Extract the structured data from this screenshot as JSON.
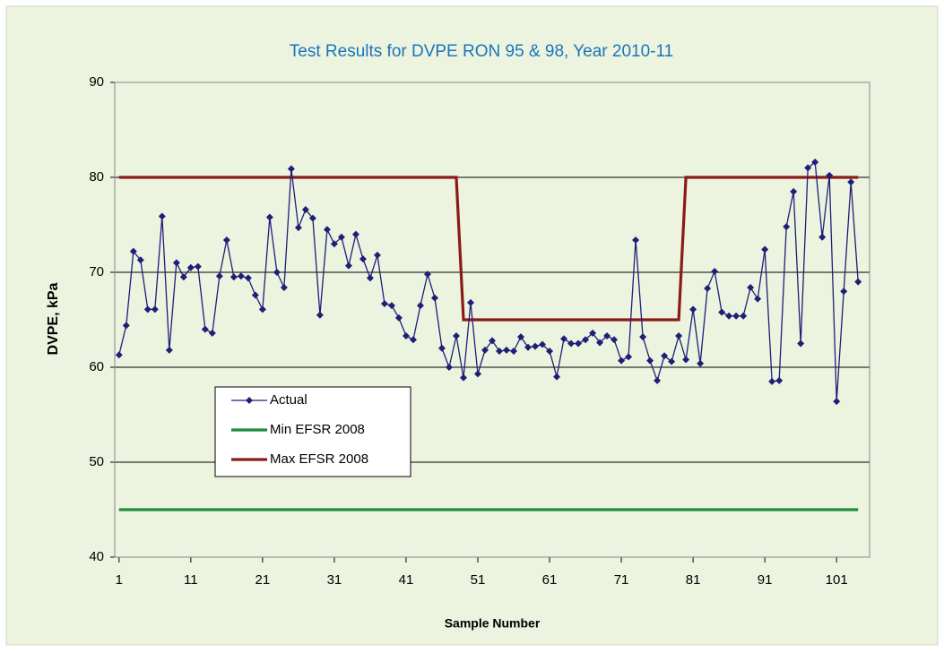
{
  "chart_data": {
    "type": "line",
    "title": "Test Results for DVPE RON 95 & 98, Year 2010-11",
    "x_label": "Sample Number",
    "y_label": "DVPE, kPa",
    "x": [
      1,
      2,
      3,
      4,
      5,
      6,
      7,
      8,
      9,
      10,
      11,
      12,
      13,
      14,
      15,
      16,
      17,
      18,
      19,
      20,
      21,
      22,
      23,
      24,
      25,
      26,
      27,
      28,
      29,
      30,
      31,
      32,
      33,
      34,
      35,
      36,
      37,
      38,
      39,
      40,
      41,
      42,
      43,
      44,
      45,
      46,
      47,
      48,
      49,
      50,
      51,
      52,
      53,
      54,
      55,
      56,
      57,
      58,
      59,
      60,
      61,
      62,
      63,
      64,
      65,
      66,
      67,
      68,
      69,
      70,
      71,
      72,
      73,
      74,
      75,
      76,
      77,
      78,
      79,
      80,
      81,
      82,
      83,
      84,
      85,
      86,
      87,
      88,
      89,
      90,
      91,
      92,
      93,
      94,
      95,
      96,
      97,
      98,
      99,
      100,
      101,
      102,
      103,
      104
    ],
    "series": [
      {
        "name": "Actual",
        "color": "#1f1f78",
        "marker": "diamond",
        "values": [
          61.3,
          64.4,
          72.2,
          71.3,
          66.1,
          66.1,
          75.9,
          61.8,
          71.0,
          69.5,
          70.5,
          70.6,
          64.0,
          63.6,
          69.6,
          73.4,
          69.5,
          69.6,
          69.4,
          67.6,
          66.1,
          75.8,
          70.0,
          68.4,
          80.9,
          74.7,
          76.6,
          75.7,
          65.5,
          74.5,
          73.0,
          73.7,
          70.7,
          74.0,
          71.4,
          69.4,
          71.8,
          66.7,
          66.5,
          65.2,
          63.3,
          62.9,
          66.5,
          69.8,
          67.3,
          62.0,
          60.0,
          63.3,
          58.9,
          66.8,
          59.3,
          61.8,
          62.8,
          61.7,
          61.8,
          61.7,
          63.2,
          62.1,
          62.2,
          62.4,
          61.7,
          59.0,
          63.0,
          62.5,
          62.5,
          62.9,
          63.6,
          62.6,
          63.3,
          62.9,
          60.7,
          61.1,
          73.4,
          63.2,
          60.7,
          58.6,
          61.2,
          60.6,
          63.3,
          60.8,
          66.1,
          60.4,
          68.3,
          70.1,
          65.8,
          65.4,
          65.4,
          65.4,
          68.4,
          67.2,
          72.4,
          58.5,
          58.6,
          74.8,
          78.5,
          62.5,
          81.0,
          81.6,
          73.7,
          80.2,
          56.4,
          68.0,
          79.5,
          69.0
        ]
      },
      {
        "name": "Min EFSR 2008",
        "color": "#1e8c3c",
        "values": [
          45,
          45,
          45,
          45,
          45,
          45,
          45,
          45,
          45,
          45,
          45,
          45,
          45,
          45,
          45,
          45,
          45,
          45,
          45,
          45,
          45,
          45,
          45,
          45,
          45,
          45,
          45,
          45,
          45,
          45,
          45,
          45,
          45,
          45,
          45,
          45,
          45,
          45,
          45,
          45,
          45,
          45,
          45,
          45,
          45,
          45,
          45,
          45,
          45,
          45,
          45,
          45,
          45,
          45,
          45,
          45,
          45,
          45,
          45,
          45,
          45,
          45,
          45,
          45,
          45,
          45,
          45,
          45,
          45,
          45,
          45,
          45,
          45,
          45,
          45,
          45,
          45,
          45,
          45,
          45,
          45,
          45,
          45,
          45,
          45,
          45,
          45,
          45,
          45,
          45,
          45,
          45,
          45,
          45,
          45,
          45,
          45,
          45,
          45,
          45,
          45,
          45,
          45,
          45
        ]
      },
      {
        "name": "Max EFSR 2008",
        "color": "#8b1a1a",
        "values": [
          80,
          80,
          80,
          80,
          80,
          80,
          80,
          80,
          80,
          80,
          80,
          80,
          80,
          80,
          80,
          80,
          80,
          80,
          80,
          80,
          80,
          80,
          80,
          80,
          80,
          80,
          80,
          80,
          80,
          80,
          80,
          80,
          80,
          80,
          80,
          80,
          80,
          80,
          80,
          80,
          80,
          80,
          80,
          80,
          80,
          80,
          80,
          80,
          65,
          65,
          65,
          65,
          65,
          65,
          65,
          65,
          65,
          65,
          65,
          65,
          65,
          65,
          65,
          65,
          65,
          65,
          65,
          65,
          65,
          65,
          65,
          65,
          65,
          65,
          65,
          65,
          65,
          65,
          65,
          80,
          80,
          80,
          80,
          80,
          80,
          80,
          80,
          80,
          80,
          80,
          80,
          80,
          80,
          80,
          80,
          80,
          80,
          80,
          80,
          80,
          80,
          80,
          80,
          80
        ]
      }
    ],
    "xlim": [
      0.4,
      105.6
    ],
    "xticks": [
      1,
      11,
      21,
      31,
      41,
      51,
      61,
      71,
      81,
      91,
      101
    ],
    "ylim": [
      40,
      90
    ],
    "yticks": [
      40,
      50,
      60,
      70,
      80,
      90
    ],
    "grid": true,
    "legend": "lower-left"
  }
}
